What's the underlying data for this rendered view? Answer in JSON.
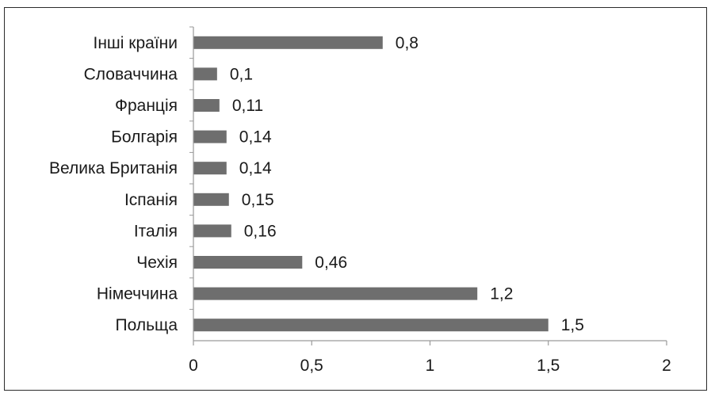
{
  "chart_data": {
    "type": "bar",
    "orientation": "horizontal",
    "categories": [
      "Польща",
      "Німеччина",
      "Чехія",
      "Італія",
      "Іспанія",
      "Велика Британія",
      "Болгарія",
      "Франція",
      "Словаччина",
      "Інші країни"
    ],
    "values": [
      1.5,
      1.2,
      0.46,
      0.16,
      0.15,
      0.14,
      0.14,
      0.11,
      0.1,
      0.8
    ],
    "value_labels": [
      "1,5",
      "1,2",
      "0,46",
      "0,16",
      "0,15",
      "0,14",
      "0,14",
      "0,11",
      "0,1",
      "0,8"
    ],
    "xlim": [
      0,
      2
    ],
    "x_ticks": [
      0,
      0.5,
      1,
      1.5,
      2
    ],
    "x_tick_labels": [
      "0",
      "0,5",
      "1",
      "1,5",
      "2"
    ],
    "title": "",
    "xlabel": "",
    "ylabel": "",
    "grid": false,
    "legend": "none",
    "bar_color": "#6e6e6e"
  }
}
